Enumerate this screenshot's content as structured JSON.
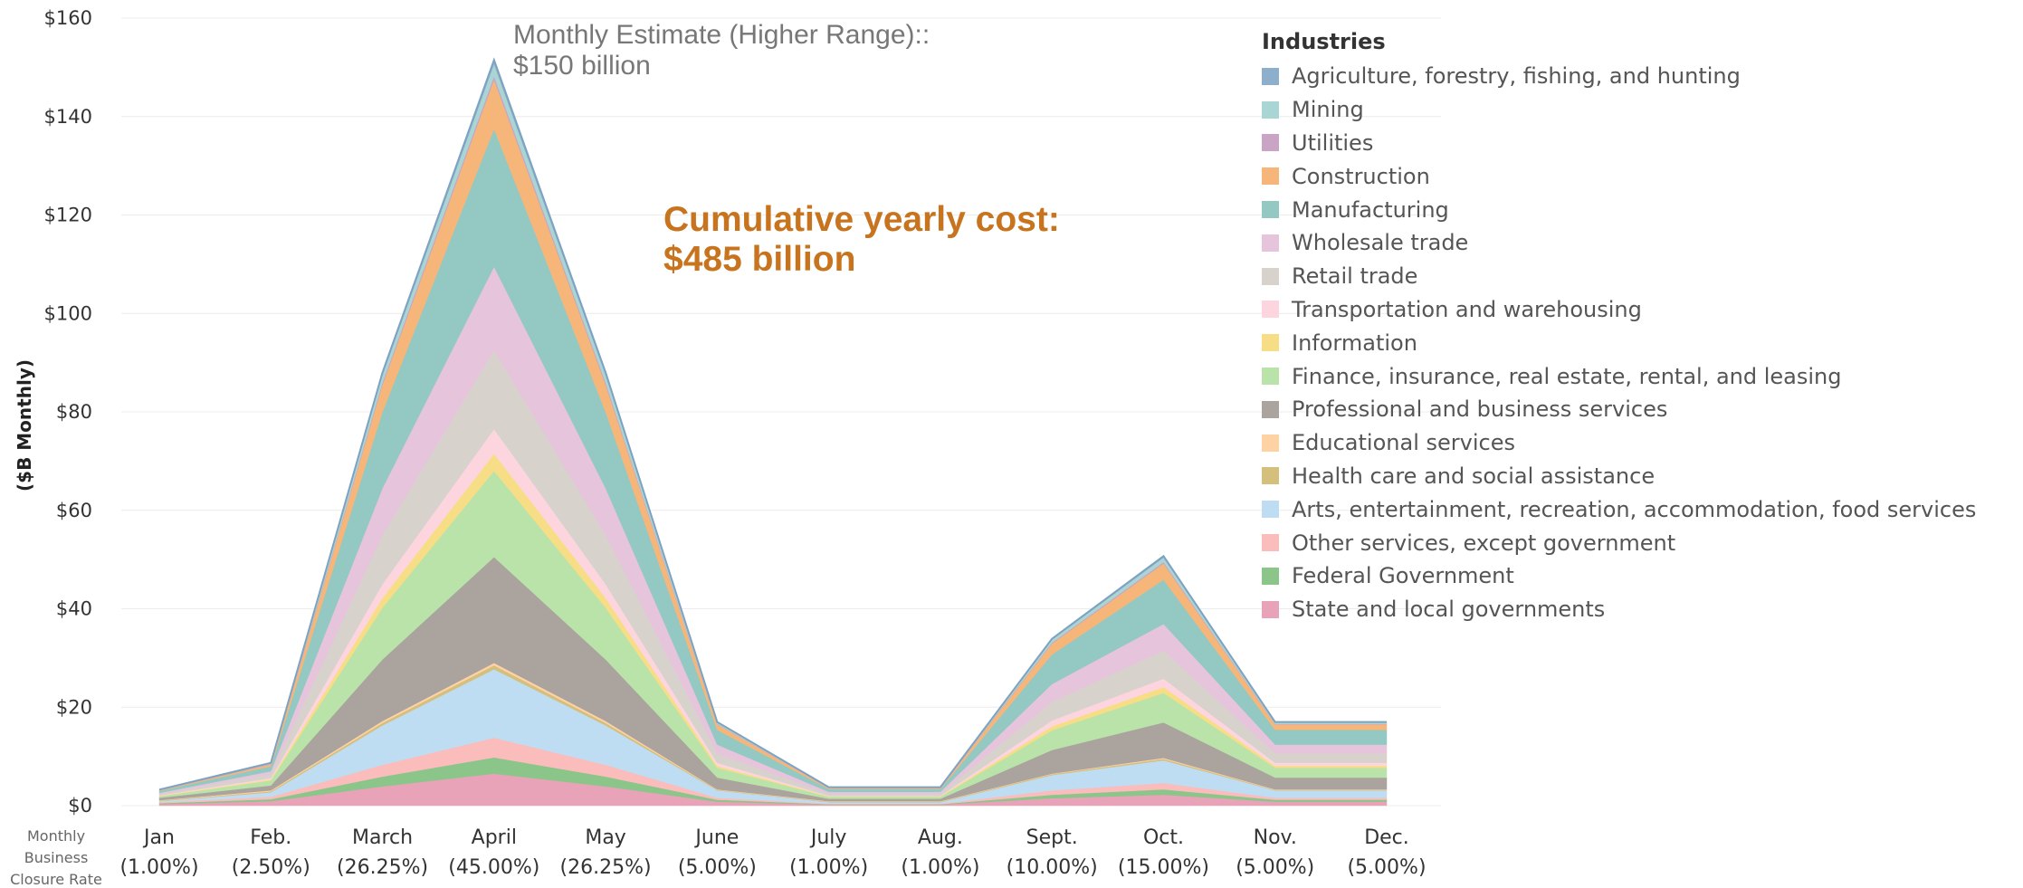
{
  "chart_data": {
    "type": "area",
    "stacked": true,
    "title": "",
    "ylabel": "($B Monthly)",
    "xlabel_row": [
      "Monthly",
      "Business",
      "Closure Rate"
    ],
    "ylim": [
      0,
      160
    ],
    "yticks": [
      0,
      20,
      40,
      60,
      80,
      100,
      120,
      140,
      160
    ],
    "ytick_labels": [
      "$0",
      "$20",
      "$40",
      "$60",
      "$80",
      "$100",
      "$120",
      "$140",
      "$160"
    ],
    "grid": true,
    "legend_position": "right",
    "legend_title": "Industries",
    "categories": [
      "Jan",
      "Feb.",
      "March",
      "April",
      "May",
      "June",
      "July",
      "Aug.",
      "Sept.",
      "Oct.",
      "Nov.",
      "Dec."
    ],
    "closure_rates": [
      "(1.00%)",
      "(2.50%)",
      "(26.25%)",
      "(45.00%)",
      "(26.25%)",
      "(5.00%)",
      "(1.00%)",
      "(1.00%)",
      "(10.00%)",
      "(15.00%)",
      "(5.00%)",
      "(5.00%)"
    ],
    "series": [
      {
        "name": "State and local governments",
        "color": "#e8a3b9",
        "values": [
          0.3,
          0.9,
          3.9,
          6.5,
          3.9,
          0.8,
          0.2,
          0.2,
          1.5,
          2.2,
          0.8,
          0.8
        ]
      },
      {
        "name": "Federal Government",
        "color": "#8cc58a",
        "values": [
          0.2,
          0.4,
          2.0,
          3.3,
          2.0,
          0.4,
          0.1,
          0.1,
          0.7,
          1.1,
          0.4,
          0.4
        ]
      },
      {
        "name": "Other services, except government",
        "color": "#fbbcbc",
        "values": [
          0.2,
          0.5,
          2.4,
          4.0,
          2.4,
          0.4,
          0.1,
          0.1,
          0.9,
          1.3,
          0.4,
          0.4
        ]
      },
      {
        "name": "Arts, entertainment, recreation, accommodation, food services",
        "color": "#bfddf2",
        "values": [
          0.2,
          0.9,
          8.0,
          13.9,
          8.0,
          1.5,
          0.3,
          0.3,
          3.1,
          4.6,
          1.5,
          1.5
        ]
      },
      {
        "name": "Health care and social assistance",
        "color": "#d4bf7c",
        "values": [
          0.1,
          0.2,
          0.5,
          0.8,
          0.5,
          0.1,
          0.1,
          0.1,
          0.2,
          0.3,
          0.1,
          0.1
        ]
      },
      {
        "name": "Educational services",
        "color": "#ffd2a4",
        "values": [
          0.1,
          0.2,
          0.4,
          0.5,
          0.4,
          0.1,
          0.1,
          0.1,
          0.1,
          0.2,
          0.1,
          0.1
        ]
      },
      {
        "name": "Professional and business services",
        "color": "#aaa39e",
        "values": [
          0.5,
          1.0,
          12.5,
          21.5,
          12.5,
          2.4,
          0.5,
          0.5,
          4.8,
          7.2,
          2.4,
          2.4
        ]
      },
      {
        "name": "Finance, insurance, real estate, rental, and leasing",
        "color": "#b9e3a8",
        "values": [
          0.3,
          1.0,
          10.5,
          17.5,
          10.5,
          2.0,
          0.4,
          0.4,
          4.0,
          6.0,
          2.0,
          2.0
        ]
      },
      {
        "name": "Information",
        "color": "#f7dd86",
        "values": [
          0.1,
          0.2,
          2.0,
          3.5,
          2.0,
          0.4,
          0.1,
          0.1,
          0.8,
          1.2,
          0.4,
          0.4
        ]
      },
      {
        "name": "Transportation and warehousing",
        "color": "#fdd5de",
        "values": [
          0.1,
          0.3,
          2.8,
          5.0,
          2.8,
          0.6,
          0.1,
          0.1,
          1.2,
          1.7,
          0.6,
          0.6
        ]
      },
      {
        "name": "Retail trade",
        "color": "#d8d2cd",
        "values": [
          0.3,
          0.8,
          10.0,
          16.0,
          10.0,
          1.9,
          0.4,
          0.4,
          3.8,
          5.7,
          1.9,
          1.9
        ]
      },
      {
        "name": "Wholesale trade",
        "color": "#e6c4dc",
        "values": [
          0.2,
          0.6,
          9.5,
          17.0,
          9.5,
          1.8,
          0.4,
          0.4,
          3.6,
          5.4,
          1.8,
          1.8
        ]
      },
      {
        "name": "Manufacturing",
        "color": "#93c8c3",
        "values": [
          0.4,
          1.0,
          15.5,
          28.0,
          15.5,
          3.0,
          0.6,
          0.6,
          6.0,
          9.0,
          3.0,
          3.0
        ]
      },
      {
        "name": "Construction",
        "color": "#f7b679",
        "values": [
          0.1,
          0.4,
          5.5,
          10.0,
          5.5,
          1.1,
          0.2,
          0.2,
          2.2,
          3.3,
          1.1,
          1.1
        ]
      },
      {
        "name": "Utilities",
        "color": "#c9a4c4",
        "values": [
          0.05,
          0.1,
          0.5,
          0.7,
          0.5,
          0.1,
          0.05,
          0.05,
          0.2,
          0.3,
          0.1,
          0.1
        ]
      },
      {
        "name": "Mining",
        "color": "#a9d6d4",
        "values": [
          0.05,
          0.1,
          1.5,
          2.5,
          1.5,
          0.3,
          0.05,
          0.05,
          0.6,
          0.9,
          0.3,
          0.3
        ]
      },
      {
        "name": "Agriculture, forestry, fishing, and hunting",
        "color": "#8eafcb",
        "values": [
          0.05,
          0.1,
          0.5,
          0.8,
          0.5,
          0.1,
          0.05,
          0.05,
          0.2,
          0.3,
          0.1,
          0.1
        ]
      }
    ],
    "annotations": {
      "peak": [
        "Monthly Estimate (Higher Range)::",
        "$150 billion"
      ],
      "cumulative": [
        "Cumulative yearly cost:",
        "$485 billion"
      ]
    }
  },
  "legend_items": [
    {
      "name": "Agriculture, forestry, fishing, and hunting",
      "color": "#8eafcb"
    },
    {
      "name": "Mining",
      "color": "#a9d6d4"
    },
    {
      "name": "Utilities",
      "color": "#c9a4c4"
    },
    {
      "name": "Construction",
      "color": "#f7b679"
    },
    {
      "name": "Manufacturing",
      "color": "#93c8c3"
    },
    {
      "name": "Wholesale trade",
      "color": "#e6c4dc"
    },
    {
      "name": "Retail trade",
      "color": "#d8d2cd"
    },
    {
      "name": "Transportation and warehousing",
      "color": "#fdd5de"
    },
    {
      "name": "Information",
      "color": "#f7dd86"
    },
    {
      "name": "Finance, insurance, real estate, rental, and leasing",
      "color": "#b9e3a8"
    },
    {
      "name": "Professional and business services",
      "color": "#aaa39e"
    },
    {
      "name": "Educational services",
      "color": "#ffd2a4"
    },
    {
      "name": "Health care and social assistance",
      "color": "#d4bf7c"
    },
    {
      "name": "Arts, entertainment, recreation, accommodation, food services",
      "color": "#bfddf2"
    },
    {
      "name": "Other services, except government",
      "color": "#fbbcbc"
    },
    {
      "name": "Federal Government",
      "color": "#8cc58a"
    },
    {
      "name": "State and local governments",
      "color": "#e8a3b9"
    }
  ]
}
